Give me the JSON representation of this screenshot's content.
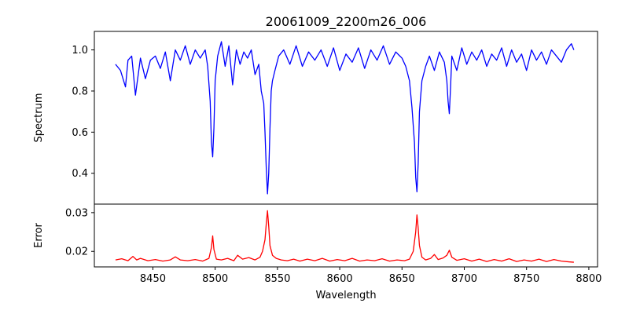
{
  "chart_data": [
    {
      "panel": "top",
      "type": "line",
      "title": "20061009_2200m26_006",
      "xlabel": "",
      "ylabel": "Spectrum",
      "xlim": [
        8403,
        8807
      ],
      "ylim": [
        0.25,
        1.09
      ],
      "yticks": [
        0.4,
        0.6,
        0.8,
        1.0
      ],
      "ytick_labels": [
        "0.4",
        "0.6",
        "0.8",
        "1.0"
      ],
      "grid": false,
      "series": [
        {
          "color": "#0000ff",
          "x": [
            8420,
            8424,
            8428,
            8430,
            8433,
            8436,
            8440,
            8444,
            8448,
            8452,
            8456,
            8460,
            8464,
            8468,
            8472,
            8476,
            8480,
            8484,
            8488,
            8492,
            8494,
            8496,
            8497,
            8498,
            8499,
            8500,
            8502,
            8505,
            8508,
            8511,
            8514,
            8517,
            8520,
            8523,
            8526,
            8529,
            8532,
            8535,
            8537,
            8539,
            8540,
            8541,
            8542,
            8543,
            8544,
            8545,
            8546,
            8548,
            8551,
            8555,
            8560,
            8565,
            8570,
            8575,
            8580,
            8585,
            8590,
            8595,
            8600,
            8605,
            8610,
            8615,
            8620,
            8625,
            8630,
            8635,
            8640,
            8645,
            8650,
            8653,
            8656,
            8658,
            8660,
            8661,
            8662,
            8663,
            8664,
            8666,
            8669,
            8672,
            8676,
            8680,
            8684,
            8686,
            8687,
            8688,
            8689,
            8690,
            8694,
            8698,
            8702,
            8706,
            8710,
            8714,
            8718,
            8722,
            8726,
            8730,
            8734,
            8738,
            8742,
            8746,
            8750,
            8754,
            8758,
            8762,
            8766,
            8770,
            8774,
            8778,
            8782,
            8786,
            8788
          ],
          "y": [
            0.93,
            0.9,
            0.82,
            0.95,
            0.97,
            0.78,
            0.96,
            0.86,
            0.95,
            0.97,
            0.91,
            0.99,
            0.85,
            1.0,
            0.95,
            1.02,
            0.93,
            1.0,
            0.96,
            1.0,
            0.92,
            0.75,
            0.55,
            0.48,
            0.62,
            0.85,
            0.97,
            1.04,
            0.92,
            1.02,
            0.83,
            1.0,
            0.93,
            0.99,
            0.96,
            1.0,
            0.88,
            0.93,
            0.8,
            0.74,
            0.6,
            0.43,
            0.3,
            0.4,
            0.62,
            0.8,
            0.85,
            0.9,
            0.97,
            1.0,
            0.93,
            1.02,
            0.92,
            0.99,
            0.95,
            1.0,
            0.92,
            1.01,
            0.9,
            0.98,
            0.94,
            1.01,
            0.91,
            1.0,
            0.95,
            1.02,
            0.93,
            0.99,
            0.96,
            0.92,
            0.85,
            0.72,
            0.55,
            0.38,
            0.31,
            0.45,
            0.7,
            0.85,
            0.92,
            0.97,
            0.9,
            0.99,
            0.94,
            0.85,
            0.75,
            0.69,
            0.82,
            0.97,
            0.9,
            1.01,
            0.93,
            0.99,
            0.95,
            1.0,
            0.92,
            0.98,
            0.95,
            1.01,
            0.92,
            1.0,
            0.94,
            0.98,
            0.9,
            1.0,
            0.95,
            0.99,
            0.93,
            1.0,
            0.97,
            0.94,
            1.0,
            1.03,
            1.0
          ]
        }
      ]
    },
    {
      "panel": "bottom",
      "type": "line",
      "xlabel": "Wavelength",
      "ylabel": "Error",
      "xlim": [
        8403,
        8807
      ],
      "ylim": [
        0.016,
        0.0322
      ],
      "xticks": [
        8450,
        8500,
        8550,
        8600,
        8650,
        8700,
        8750,
        8800
      ],
      "xtick_labels": [
        "8450",
        "8500",
        "8550",
        "8600",
        "8650",
        "8700",
        "8750",
        "8800"
      ],
      "yticks": [
        0.02,
        0.03
      ],
      "ytick_labels": [
        "0.02",
        "0.03"
      ],
      "grid": false,
      "series": [
        {
          "color": "#ff0000",
          "x": [
            8420,
            8425,
            8430,
            8434,
            8437,
            8440,
            8446,
            8452,
            8458,
            8464,
            8468,
            8472,
            8478,
            8484,
            8490,
            8495,
            8497,
            8498,
            8499,
            8501,
            8505,
            8510,
            8515,
            8518,
            8522,
            8527,
            8532,
            8536,
            8538,
            8540,
            8541,
            8542,
            8543,
            8544,
            8546,
            8549,
            8553,
            8558,
            8563,
            8568,
            8574,
            8580,
            8586,
            8592,
            8598,
            8604,
            8610,
            8616,
            8622,
            8628,
            8634,
            8640,
            8646,
            8652,
            8656,
            8659,
            8661,
            8662,
            8663,
            8664,
            8666,
            8669,
            8673,
            8676,
            8679,
            8683,
            8686,
            8688,
            8690,
            8694,
            8700,
            8706,
            8712,
            8718,
            8724,
            8730,
            8736,
            8742,
            8748,
            8754,
            8760,
            8766,
            8772,
            8778,
            8784,
            8788
          ],
          "y": [
            0.0178,
            0.0181,
            0.0176,
            0.0187,
            0.0178,
            0.0182,
            0.0176,
            0.0179,
            0.0175,
            0.0178,
            0.0186,
            0.0178,
            0.0176,
            0.0179,
            0.0175,
            0.0182,
            0.021,
            0.024,
            0.0205,
            0.018,
            0.0178,
            0.0182,
            0.0176,
            0.019,
            0.018,
            0.0184,
            0.0178,
            0.0185,
            0.02,
            0.023,
            0.027,
            0.0305,
            0.0265,
            0.0215,
            0.019,
            0.0182,
            0.0178,
            0.0176,
            0.018,
            0.0175,
            0.018,
            0.0176,
            0.0182,
            0.0175,
            0.0179,
            0.0176,
            0.0182,
            0.0175,
            0.0178,
            0.0176,
            0.0181,
            0.0175,
            0.0178,
            0.0176,
            0.018,
            0.02,
            0.025,
            0.0294,
            0.026,
            0.0215,
            0.0185,
            0.0178,
            0.0182,
            0.0192,
            0.0179,
            0.0183,
            0.019,
            0.0203,
            0.0185,
            0.0177,
            0.0181,
            0.0175,
            0.018,
            0.0174,
            0.0179,
            0.0175,
            0.0181,
            0.0174,
            0.0178,
            0.0175,
            0.018,
            0.0174,
            0.0179,
            0.0175,
            0.0173,
            0.0172
          ]
        }
      ]
    }
  ]
}
